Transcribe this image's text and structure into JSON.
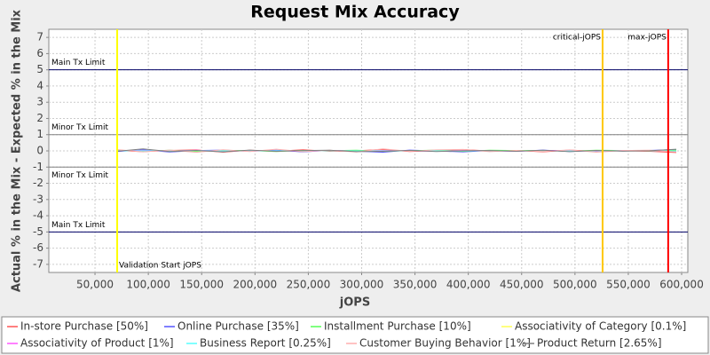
{
  "chart_data": {
    "type": "line",
    "title": "Request Mix Accuracy",
    "x_label": "jOPS",
    "y_label": "Actual % in the Mix - Expected % in the Mix",
    "xlim": [
      6700,
      605800
    ],
    "ylim": [
      -7.5,
      7.5
    ],
    "grid": true,
    "xticks": [
      {
        "value": 50000,
        "label": "50,000"
      },
      {
        "value": 100000,
        "label": "100,000"
      },
      {
        "value": 150000,
        "label": "150,000"
      },
      {
        "value": 200000,
        "label": "200,000"
      },
      {
        "value": 250000,
        "label": "250,000"
      },
      {
        "value": 300000,
        "label": "300,000"
      },
      {
        "value": 350000,
        "label": "350,000"
      },
      {
        "value": 400000,
        "label": "400,000"
      },
      {
        "value": 450000,
        "label": "450,000"
      },
      {
        "value": 500000,
        "label": "500,000"
      },
      {
        "value": 550000,
        "label": "550,000"
      },
      {
        "value": 600000,
        "label": "600,000"
      }
    ],
    "yticks": [
      -7,
      -6,
      -5,
      -4,
      -3,
      -2,
      -1,
      0,
      1,
      2,
      3,
      4,
      5,
      6,
      7
    ],
    "hlines": [
      {
        "label": "Main Tx Limit",
        "value": 5,
        "color": "#000066"
      },
      {
        "label": "Minor Tx Limit",
        "value": 1,
        "color": "#808080"
      },
      {
        "label": "Minor Tx Limit",
        "value": -1,
        "color": "#808080",
        "label_position": "below"
      },
      {
        "label": "Main Tx Limit",
        "value": -5,
        "color": "#000066"
      }
    ],
    "vlines": [
      {
        "label": "Validation Start jOPS",
        "value": 70800,
        "color": "#ffff00",
        "label_position": "bottom-right"
      },
      {
        "label": "critical-jOPS",
        "value": 525900,
        "color": "#ffc800",
        "label_position": "top-left"
      },
      {
        "label": "max-jOPS",
        "value": 587400,
        "color": "#ff0000",
        "label_position": "top-left"
      }
    ],
    "x": [
      70000,
      95000,
      120000,
      145000,
      170000,
      195000,
      220000,
      245000,
      270000,
      295000,
      320000,
      345000,
      370000,
      395000,
      420000,
      445000,
      470000,
      495000,
      520000,
      545000,
      570000,
      595000
    ],
    "series": [
      {
        "name": "In-store Purchase [50%]",
        "color": "#ff5555",
        "values": [
          0.02,
          -0.05,
          0.03,
          0.06,
          -0.08,
          0.04,
          -0.02,
          0.07,
          -0.03,
          0.01,
          0.09,
          -0.04,
          0.02,
          0.08,
          -0.01,
          0.03,
          -0.06,
          0.05,
          -0.02,
          0.01,
          -0.03,
          -0.1
        ]
      },
      {
        "name": "Online Purchase [35%]",
        "color": "#5555ff",
        "values": [
          -0.04,
          0.06,
          -0.07,
          0.02,
          0.05,
          -0.03,
          0.04,
          -0.06,
          0.03,
          -0.02,
          -0.08,
          0.05,
          -0.01,
          -0.06,
          0.02,
          -0.03,
          0.05,
          -0.04,
          0.02,
          -0.01,
          0.03,
          0.08
        ]
      },
      {
        "name": "Installment Purchase [10%]",
        "color": "#55ff55",
        "values": [
          0.05,
          -0.03,
          0.04,
          -0.05,
          0.03,
          0.02,
          -0.04,
          0.03,
          0.01,
          0.04,
          -0.02,
          0.01,
          0.05,
          -0.03,
          0.04,
          0.02,
          0.03,
          -0.02,
          0.04,
          0.02,
          -0.01,
          0.05
        ]
      },
      {
        "name": "Associativity of Category [0.1%]",
        "color": "#ffff55",
        "values": [
          0,
          0,
          0,
          0,
          0,
          0,
          0,
          0,
          0,
          0,
          0,
          0,
          0,
          0,
          0,
          0,
          0,
          0,
          0,
          0,
          0,
          0
        ]
      },
      {
        "name": "Associativity of Product [1%]",
        "color": "#ff55ff",
        "values": [
          0.01,
          0.03,
          -0.02,
          0.04,
          -0.03,
          0.02,
          0.01,
          -0.02,
          0.03,
          -0.01,
          0.02,
          0.01,
          -0.03,
          0.02,
          0.01,
          -0.02,
          0.03,
          0.01,
          -0.02,
          0.02,
          0.01,
          -0.02
        ]
      },
      {
        "name": "Business Report [0.25%]",
        "color": "#55ffff",
        "values": [
          0,
          0.01,
          -0.01,
          0.02,
          0,
          -0.01,
          0.01,
          0,
          0.01,
          -0.01,
          0,
          0.01,
          0,
          -0.01,
          0.01,
          0,
          0.01,
          -0.01,
          0,
          0.01,
          0,
          -0.01
        ]
      },
      {
        "name": "Customer Buying Behavior [1%]",
        "color": "#ffafaf",
        "values": [
          0.08,
          -0.06,
          0.05,
          -0.09,
          0.07,
          -0.04,
          0.1,
          -0.05,
          0.04,
          -0.07,
          0.12,
          -0.03,
          0.06,
          0.09,
          -0.05,
          0.03,
          -0.04,
          0.06,
          -0.08,
          0.02,
          0.04,
          -0.07
        ]
      },
      {
        "name": "Product Return [2.65%]",
        "color": "#808080",
        "values": [
          -0.03,
          0.12,
          -0.04,
          0.03,
          -0.06,
          0.05,
          -0.03,
          0.02,
          0.04,
          -0.05,
          -0.02,
          0.03,
          -0.04,
          0.01,
          0.02,
          -0.03,
          0.04,
          -0.05,
          0.03,
          -0.02,
          0.01,
          0.1
        ]
      }
    ]
  }
}
